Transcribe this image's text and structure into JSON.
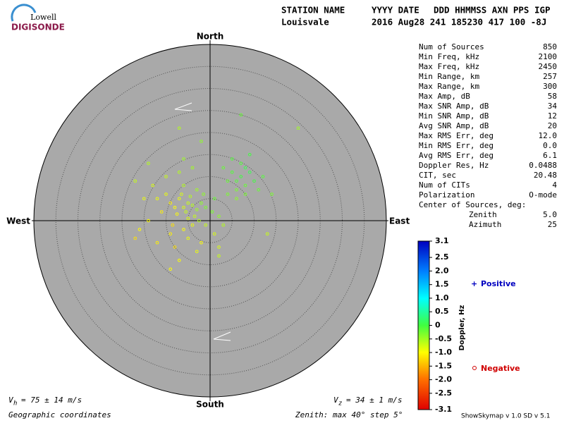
{
  "logo": {
    "top": "Lowell",
    "bottom": "DIGISONDE"
  },
  "header": {
    "labels": [
      "STATION NAME",
      "YYYY DATE",
      "DDD HHMMSS AXN PPS IGP"
    ],
    "values": [
      "Louisvale",
      "2016 Aug28 241 185230 417 100 -8J"
    ]
  },
  "compass": {
    "north": "North",
    "south": "South",
    "east": "East",
    "west": "West"
  },
  "stats": [
    [
      "Num of Sources",
      "850"
    ],
    [
      "Min Freq, kHz",
      "2100"
    ],
    [
      "Max Freq, kHz",
      "2450"
    ],
    [
      "Min Range, km",
      "257"
    ],
    [
      "Max Range, km",
      "300"
    ],
    [
      "Max Amp, dB",
      "58"
    ],
    [
      "Max SNR Amp, dB",
      "34"
    ],
    [
      "Min SNR Amp, dB",
      "12"
    ],
    [
      "Avg SNR Amp, dB",
      "20"
    ],
    [
      "Max RMS Err, deg",
      "12.0"
    ],
    [
      "Min RMS Err, deg",
      "0.0"
    ],
    [
      "Avg RMS Err, deg",
      "6.1"
    ],
    [
      "Doppler Res, Hz",
      "0.0488"
    ],
    [
      "CIT, sec",
      "20.48"
    ],
    [
      "Num of CITs",
      "4"
    ],
    [
      "Polarization",
      "O-mode"
    ]
  ],
  "center": {
    "title": "Center of Sources, deg:",
    "rows": [
      [
        "Zenith",
        "5.0"
      ],
      [
        "Azimuth",
        "25"
      ]
    ]
  },
  "colorbar": {
    "label": "Doppler, Hz",
    "range": [
      -3.1,
      3.1
    ],
    "ticks": [
      3.1,
      2.5,
      {
        "value": 2,
        "label": "2.0"
      },
      1.5,
      {
        "value": 1,
        "label": "1.0"
      },
      0.5,
      0,
      -0.5,
      {
        "value": -1,
        "label": "-1.0"
      },
      -1.5,
      {
        "value": -2,
        "label": "-2.0"
      },
      -2.5,
      -3.1
    ]
  },
  "legend": {
    "positive": "Positive",
    "negative": "Negative"
  },
  "footer": {
    "vh": {
      "symbol": "V",
      "sub": "h",
      "text": "= 75 ± 14 m/s"
    },
    "vz": {
      "symbol": "V",
      "sub": "z",
      "text": "= 34 ± 1 m/s"
    },
    "coords": "Geographic coordinates",
    "zenith": "Zenith: max 40°  step 5°",
    "version": "ShowSkymap v 1.0  SD v 5.1"
  },
  "plot": {
    "max_zenith": 40,
    "step": 5,
    "sources": [
      [
        -5,
        4,
        -0.7
      ],
      [
        -6,
        3,
        -0.8
      ],
      [
        -4,
        3.5,
        -0.6
      ],
      [
        -7,
        5,
        -0.9
      ],
      [
        -5.5,
        2,
        -0.7
      ],
      [
        -3,
        2.5,
        -0.5
      ],
      [
        -2,
        4,
        -0.4
      ],
      [
        -8,
        3,
        -1
      ],
      [
        -6.5,
        6,
        -0.8
      ],
      [
        -4.5,
        5.5,
        -0.6
      ],
      [
        -3.5,
        1,
        -0.7
      ],
      [
        -1,
        3,
        -0.3
      ],
      [
        -9,
        4,
        -1.1
      ],
      [
        -10,
        6,
        -0.9
      ],
      [
        -7.5,
        1.5,
        -1
      ],
      [
        -5,
        0.5,
        -0.8
      ],
      [
        -2.5,
        0,
        -0.6
      ],
      [
        -1.5,
        6,
        -0.4
      ],
      [
        -3,
        7,
        -0.5
      ],
      [
        -6,
        8,
        -0.6
      ],
      [
        -11,
        2,
        -1.1
      ],
      [
        -12,
        5,
        -0.9
      ],
      [
        -8.5,
        -1,
        -1.2
      ],
      [
        -6,
        -2,
        -1
      ],
      [
        -4,
        -1,
        -0.9
      ],
      [
        -1,
        -1,
        -0.7
      ],
      [
        0.5,
        2,
        -0.3
      ],
      [
        2,
        1,
        -0.4
      ],
      [
        3,
        -1,
        -0.6
      ],
      [
        1,
        5,
        -0.2
      ],
      [
        -14,
        0,
        -1
      ],
      [
        -13,
        8,
        -0.8
      ],
      [
        -10,
        10,
        -0.7
      ],
      [
        -7,
        11,
        -0.6
      ],
      [
        -4,
        12,
        -0.5
      ],
      [
        -9,
        -3,
        -1.1
      ],
      [
        -5,
        -4,
        -0.9
      ],
      [
        -2,
        -5,
        -1
      ],
      [
        1,
        -3,
        -0.8
      ],
      [
        -15,
        5,
        -0.9
      ],
      [
        -16,
        -2,
        -1
      ],
      [
        -12,
        -5,
        -1.1
      ],
      [
        -8,
        -6,
        -1.2
      ],
      [
        -3,
        -7,
        -0.9
      ],
      [
        2,
        -6,
        -0.8
      ],
      [
        -6,
        14,
        -0.5
      ],
      [
        -2,
        18,
        -0.4
      ],
      [
        -14,
        13,
        -0.6
      ],
      [
        -17,
        9,
        -0.7
      ],
      [
        -7,
        -9,
        -1
      ],
      [
        6,
        9,
        -0.1
      ],
      [
        7,
        10,
        0
      ],
      [
        8,
        8,
        -0.2
      ],
      [
        5,
        11,
        -0.1
      ],
      [
        9,
        11,
        0.1
      ],
      [
        6,
        7,
        -0.3
      ],
      [
        4,
        9,
        -0.2
      ],
      [
        10,
        9,
        0
      ],
      [
        7,
        13,
        -0.1
      ],
      [
        8,
        12,
        0.1
      ],
      [
        11,
        7,
        -0.2
      ],
      [
        3,
        12,
        -0.2
      ],
      [
        5,
        14,
        -0.1
      ],
      [
        9,
        15,
        0
      ],
      [
        12,
        10,
        -0.1
      ],
      [
        6,
        5,
        -0.4
      ],
      [
        8,
        6,
        -0.3
      ],
      [
        4,
        6,
        -0.3
      ],
      [
        7,
        24,
        -0.2
      ],
      [
        20,
        21,
        -0.5
      ],
      [
        13,
        -3,
        -0.7
      ],
      [
        -9,
        -11,
        -1
      ],
      [
        -17,
        -4,
        -1.2
      ],
      [
        -7,
        21,
        -0.6
      ],
      [
        2,
        -8,
        -0.7
      ],
      [
        14,
        6,
        -0.3
      ]
    ]
  }
}
